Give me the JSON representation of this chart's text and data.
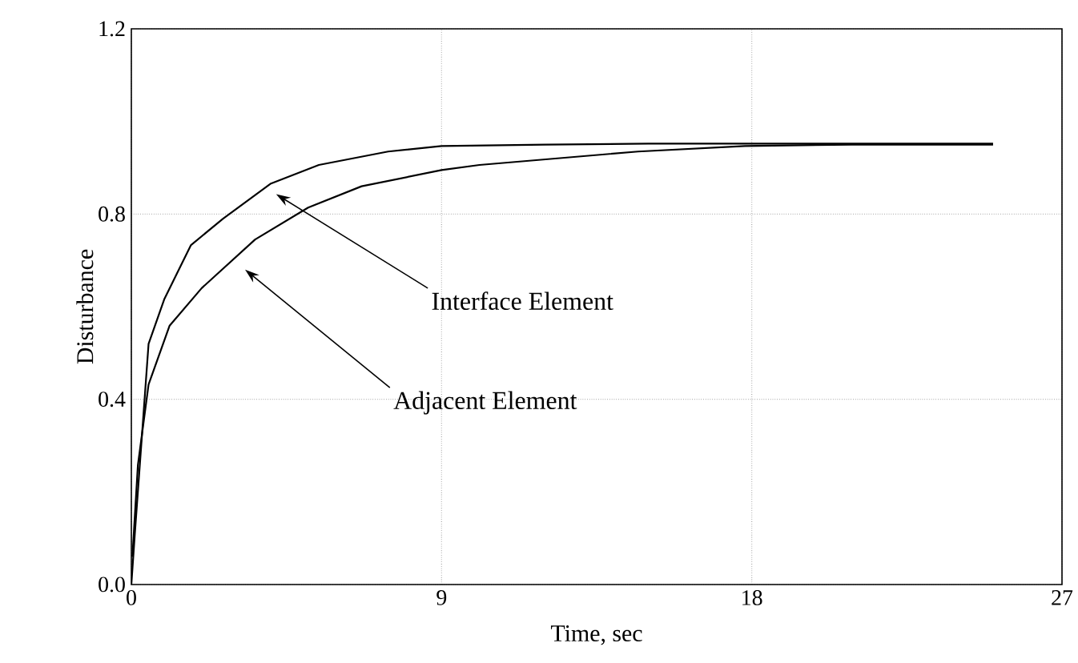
{
  "chart_data": {
    "type": "line",
    "xlabel": "Time, sec",
    "ylabel": "Disturbance",
    "xlim": [
      0,
      27
    ],
    "ylim": [
      0,
      1.2
    ],
    "xticks": [
      0,
      9,
      18,
      27
    ],
    "yticks": [
      {
        "value": 0,
        "label": "0.0"
      },
      {
        "value": 0.4,
        "label": "0.4"
      },
      {
        "value": 0.8,
        "label": "0.8"
      },
      {
        "value": 1.2,
        "label": "1.2"
      }
    ],
    "grid": true,
    "marker": "none",
    "line_style": "solid",
    "series": [
      {
        "color": "#000000",
        "x": [
          0,
          0.1,
          0.5,
          0.96,
          1.73,
          2.66,
          4.05,
          5.44,
          7.45,
          9,
          12,
          15,
          18,
          21,
          25
        ],
        "values": [
          0,
          0.108,
          0.52,
          0.617,
          0.733,
          0.79,
          0.866,
          0.906,
          0.935,
          0.947,
          0.95,
          0.952,
          0.952,
          0.952,
          0.952
        ]
      },
      {
        "color": "#000000",
        "x": [
          0.03,
          0.19,
          0.5,
          1.11,
          2.04,
          3.59,
          5.13,
          6.68,
          9,
          10.1,
          14.7,
          17.8,
          20.9,
          25
        ],
        "values": [
          0.06,
          0.258,
          0.432,
          0.559,
          0.64,
          0.745,
          0.814,
          0.86,
          0.895,
          0.906,
          0.935,
          0.947,
          0.95,
          0.95
        ]
      }
    ],
    "annotations": [
      "Interface Element",
      "Adjacent Element"
    ]
  }
}
